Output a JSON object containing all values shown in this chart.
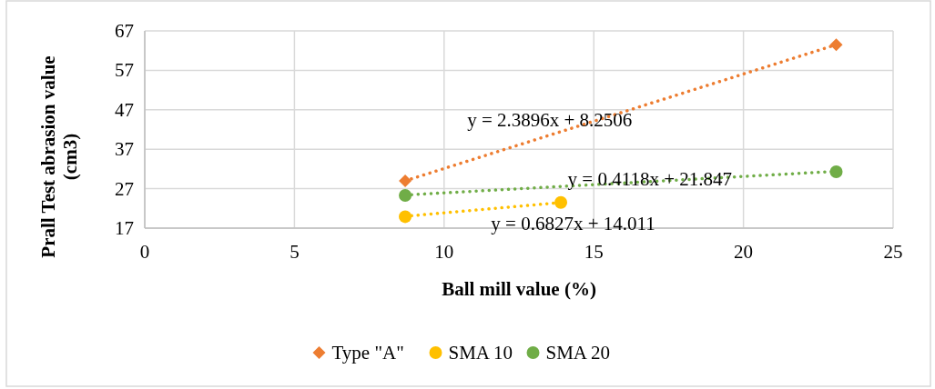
{
  "chart_data": {
    "type": "scatter",
    "xlabel": "Ball mill value (%)",
    "ylabel": "Prall Test abrasion value (cm3)",
    "xlim": [
      0,
      25
    ],
    "xticks": [
      0,
      5,
      10,
      15,
      20,
      25
    ],
    "ylim": [
      17,
      67
    ],
    "yticks": [
      17,
      27,
      37,
      47,
      57,
      67
    ],
    "grid": true,
    "legend": "bottom",
    "series": [
      {
        "name": "Type \"A\"",
        "marker": "diamond",
        "color": "#ed7d31",
        "x": [
          8.7,
          23.1
        ],
        "values": [
          29.0,
          63.5
        ]
      },
      {
        "name": "SMA 10",
        "marker": "circle",
        "color": "#ffc000",
        "x": [
          8.7,
          13.9
        ],
        "values": [
          19.9,
          23.5
        ]
      },
      {
        "name": "SMA 20",
        "marker": "circle",
        "color": "#70ad47",
        "x": [
          8.7,
          23.1
        ],
        "values": [
          25.3,
          31.3
        ]
      },
      {
        "type": "line",
        "line_style": "dotted",
        "marker": "none",
        "color": "#ed7d31",
        "x": [
          8.7,
          23.1
        ],
        "values": [
          29.0,
          63.5
        ]
      },
      {
        "type": "line",
        "line_style": "dotted",
        "marker": "none",
        "color": "#70ad47",
        "x": [
          8.7,
          23.1
        ],
        "values": [
          25.4,
          31.4
        ]
      },
      {
        "type": "line",
        "line_style": "dotted",
        "marker": "none",
        "color": "#ffc000",
        "x": [
          8.7,
          13.9
        ],
        "values": [
          20.0,
          23.5
        ]
      }
    ],
    "annotations": [
      "y = 2.3896x + 8.2506",
      "y = 0.4118x + 21.847",
      "y = 0.6827x + 14.011"
    ]
  }
}
